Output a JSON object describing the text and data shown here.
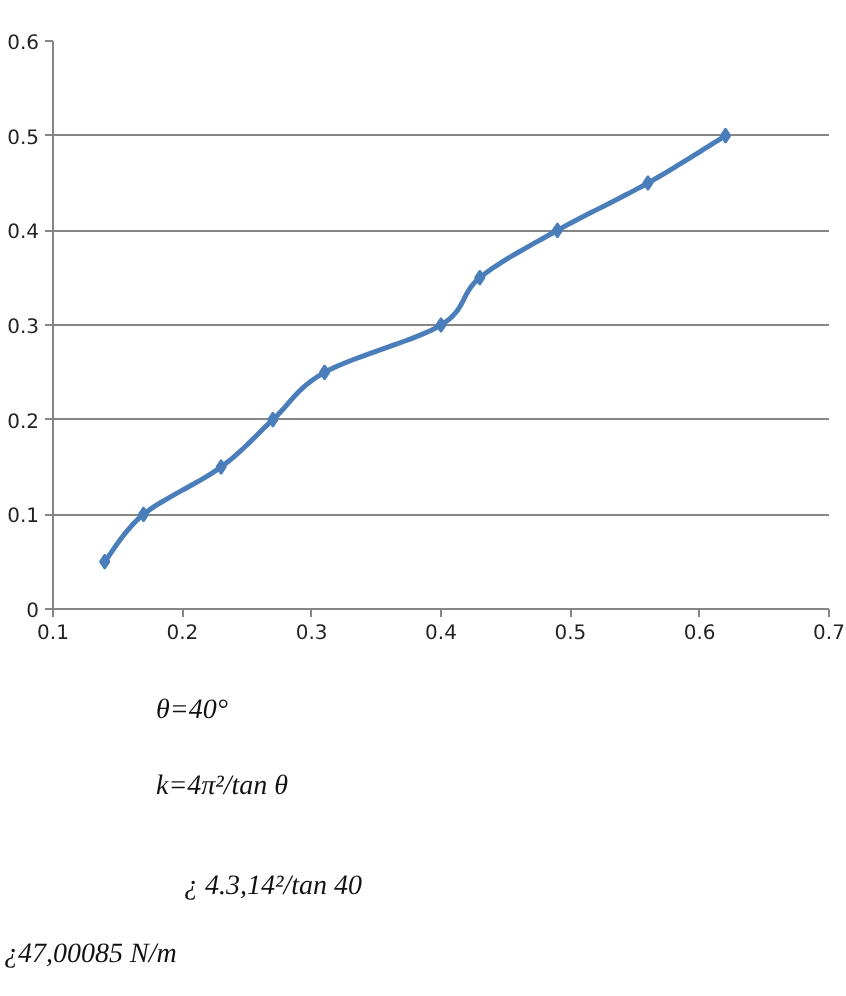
{
  "chart_data": {
    "type": "line",
    "x": [
      0.14,
      0.17,
      0.23,
      0.27,
      0.31,
      0.4,
      0.43,
      0.49,
      0.56,
      0.62
    ],
    "series": [
      {
        "color": "#4a7ebb",
        "values": [
          0.05,
          0.1,
          0.15,
          0.2,
          0.25,
          0.3,
          0.35,
          0.4,
          0.45,
          0.5
        ]
      }
    ],
    "xlim": [
      0.1,
      0.7
    ],
    "xticks": [
      0.1,
      0.2,
      0.3,
      0.4,
      0.5,
      0.6,
      0.7
    ],
    "ylim": [
      0,
      0.6
    ],
    "yticks": [
      0,
      0.1,
      0.2,
      0.3,
      0.4,
      0.5,
      0.6
    ],
    "grid": "y",
    "marker": "diamond",
    "line_style": "solid",
    "annotations": [
      "θ=40°",
      "k=4π²/tan θ",
      "¿ 4.3,14²/tan 40",
      "¿47,00085 N/m"
    ]
  }
}
